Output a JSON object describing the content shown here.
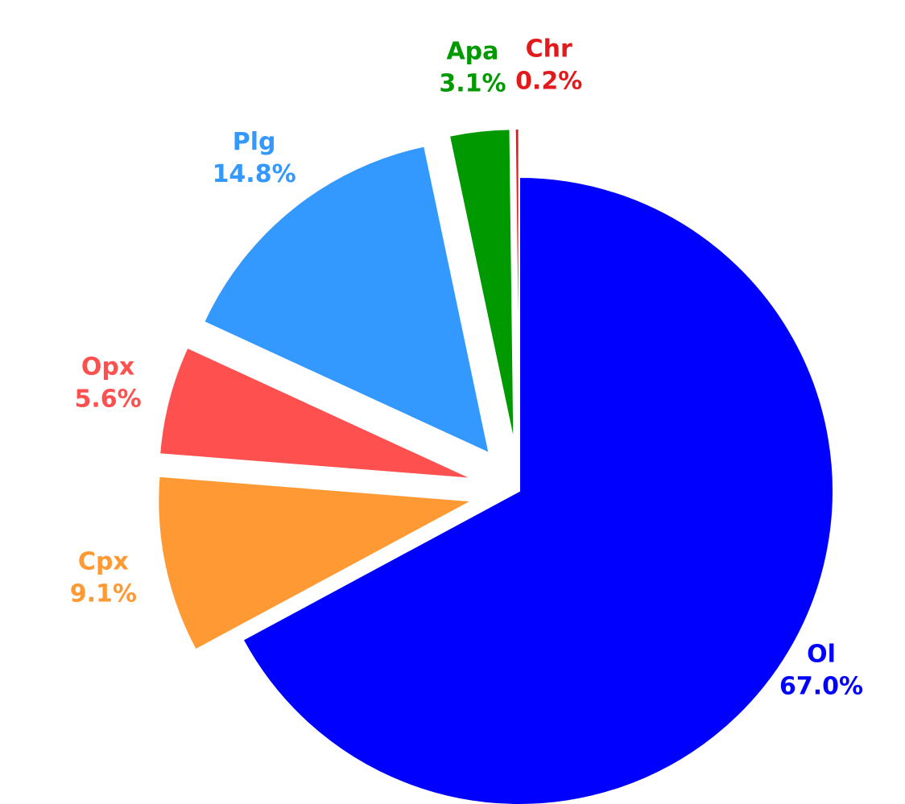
{
  "chart_data": {
    "type": "pie",
    "categories": [
      "Ol",
      "Cpx",
      "Opx",
      "Plg",
      "Apa",
      "Chr"
    ],
    "values": [
      67.0,
      9.1,
      5.6,
      14.8,
      3.1,
      0.2
    ],
    "value_labels": [
      "67.0%",
      "9.1%",
      "5.6%",
      "14.8%",
      "3.1%",
      "0.2%"
    ],
    "colors": [
      "#0000ff",
      "#ff9933",
      "#ff5050",
      "#3399ff",
      "#009900",
      "#e31a1c"
    ]
  }
}
